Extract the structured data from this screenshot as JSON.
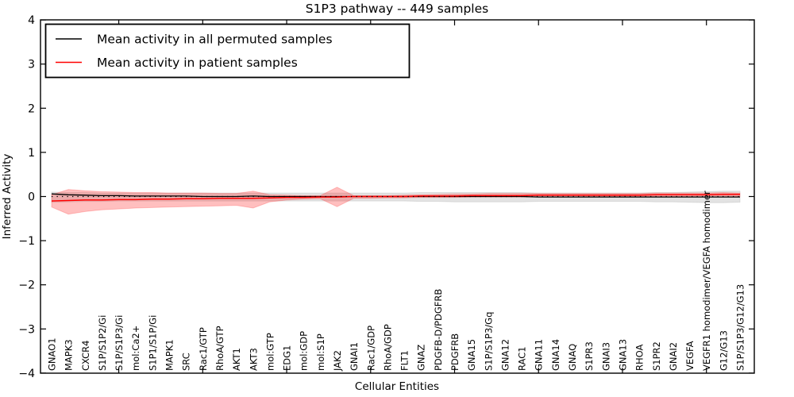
{
  "figure": {
    "title": "S1P3 pathway -- 449 samples",
    "xlabel": "Cellular Entities",
    "ylabel": "Inferred Activity"
  },
  "legend": {
    "entries": [
      {
        "label": "Mean activity in all permuted samples",
        "color": "#000000"
      },
      {
        "label": "Mean activity in patient samples",
        "color": "#ff0000"
      }
    ]
  },
  "chart_data": {
    "type": "line",
    "title": "S1P3 pathway -- 449 samples",
    "xlabel": "Cellular Entities",
    "ylabel": "Inferred Activity",
    "ylim": [
      -4,
      4
    ],
    "yticks": [
      4,
      3,
      2,
      1,
      0,
      -1,
      -2,
      -3,
      -4
    ],
    "ytick_labels": [
      "4",
      "3",
      "2",
      "1",
      "0",
      "−1",
      "−2",
      "−3",
      "−4"
    ],
    "grid": false,
    "legend_position": "upper left",
    "baseline": 0,
    "baseline_style": "dotted-black",
    "categories": [
      "GNAO1",
      "MAPK3",
      "CXCR4",
      "S1P/S1P2/Gi",
      "S1P/S1P3/Gi",
      "mol:Ca2+",
      "S1P1/S1P/Gi",
      "MAPK1",
      "SRC",
      "Rac1/GTP",
      "RhoA/GTP",
      "AKT1",
      "AKT3",
      "mol:GTP",
      "EDG1",
      "mol:GDP",
      "mol:S1P",
      "JAK2",
      "GNAI1",
      "Rac1/GDP",
      "RhoA/GDP",
      "FLT1",
      "GNAZ",
      "PDGFB-D/PDGFRB",
      "PDGFRB",
      "GNA15",
      "S1P/S1P3/Gq",
      "GNA12",
      "RAC1",
      "GNA11",
      "GNA14",
      "GNAQ",
      "S1PR3",
      "GNAI3",
      "GNA13",
      "RHOA",
      "S1PR2",
      "GNAI2",
      "VEGFA",
      "VEGFR1 homodimer/VEGFA homodimer",
      "G12/G13",
      "S1P/S1P3/G12/G13"
    ],
    "series": [
      {
        "name": "Mean activity in all permuted samples",
        "color": "#000000",
        "band_color": "#999999",
        "band_opacity": 0.28,
        "values": [
          0.06,
          0.04,
          0.03,
          0.02,
          0.02,
          0.01,
          0.01,
          0.01,
          0.01,
          0.0,
          0.0,
          0.0,
          0.01,
          0.0,
          0.0,
          0.0,
          0.0,
          0.0,
          0.0,
          0.0,
          0.0,
          0.0,
          0.0,
          0.0,
          0.0,
          0.0,
          0.0,
          0.0,
          0.0,
          -0.01,
          -0.01,
          -0.01,
          -0.01,
          -0.01,
          -0.01,
          -0.01,
          -0.01,
          -0.01,
          -0.01,
          -0.01,
          -0.01,
          -0.01
        ],
        "band_upper": [
          0.1,
          0.09,
          0.09,
          0.08,
          0.08,
          0.08,
          0.08,
          0.08,
          0.08,
          0.08,
          0.08,
          0.08,
          0.08,
          0.08,
          0.08,
          0.08,
          0.08,
          0.08,
          0.08,
          0.08,
          0.08,
          0.08,
          0.09,
          0.09,
          0.09,
          0.09,
          0.09,
          0.09,
          0.09,
          0.08,
          0.08,
          0.08,
          0.08,
          0.08,
          0.08,
          0.08,
          0.09,
          0.09,
          0.1,
          0.11,
          0.12,
          0.12
        ],
        "band_lower": [
          -0.13,
          -0.12,
          -0.11,
          -0.11,
          -0.1,
          -0.1,
          -0.1,
          -0.1,
          -0.1,
          -0.1,
          -0.1,
          -0.1,
          -0.1,
          -0.1,
          -0.1,
          -0.1,
          -0.1,
          -0.1,
          -0.1,
          -0.1,
          -0.1,
          -0.1,
          -0.11,
          -0.11,
          -0.12,
          -0.12,
          -0.12,
          -0.12,
          -0.12,
          -0.11,
          -0.11,
          -0.11,
          -0.11,
          -0.11,
          -0.11,
          -0.11,
          -0.12,
          -0.12,
          -0.13,
          -0.14,
          -0.14,
          -0.13
        ]
      },
      {
        "name": "Mean activity in patient samples",
        "color": "#ff0000",
        "band_color": "#ff2a2a",
        "band_opacity": 0.3,
        "values": [
          -0.1,
          -0.09,
          -0.08,
          -0.08,
          -0.07,
          -0.07,
          -0.06,
          -0.06,
          -0.05,
          -0.05,
          -0.04,
          -0.04,
          -0.04,
          -0.03,
          -0.02,
          -0.02,
          -0.01,
          -0.01,
          0.0,
          0.0,
          0.0,
          0.0,
          0.01,
          0.01,
          0.01,
          0.02,
          0.02,
          0.02,
          0.02,
          0.03,
          0.03,
          0.03,
          0.03,
          0.03,
          0.03,
          0.03,
          0.04,
          0.04,
          0.04,
          0.04,
          0.05,
          0.05
        ],
        "band_upper": [
          0.04,
          0.16,
          0.13,
          0.11,
          0.1,
          0.09,
          0.09,
          0.08,
          0.08,
          0.08,
          0.07,
          0.07,
          0.12,
          0.04,
          0.03,
          0.02,
          0.02,
          0.21,
          0.02,
          0.02,
          0.02,
          0.03,
          0.04,
          0.05,
          0.06,
          0.06,
          0.07,
          0.07,
          0.07,
          0.07,
          0.07,
          0.07,
          0.07,
          0.07,
          0.07,
          0.07,
          0.08,
          0.08,
          0.08,
          0.08,
          0.09,
          0.08
        ],
        "band_lower": [
          -0.24,
          -0.4,
          -0.34,
          -0.3,
          -0.28,
          -0.26,
          -0.25,
          -0.24,
          -0.23,
          -0.22,
          -0.21,
          -0.2,
          -0.26,
          -0.12,
          -0.08,
          -0.06,
          -0.05,
          -0.23,
          -0.04,
          -0.04,
          -0.03,
          -0.03,
          -0.02,
          -0.02,
          -0.02,
          -0.01,
          -0.01,
          -0.01,
          -0.01,
          -0.01,
          -0.01,
          -0.01,
          0.0,
          0.0,
          0.0,
          0.0,
          0.0,
          0.0,
          0.0,
          0.01,
          0.01,
          0.0
        ]
      }
    ]
  }
}
